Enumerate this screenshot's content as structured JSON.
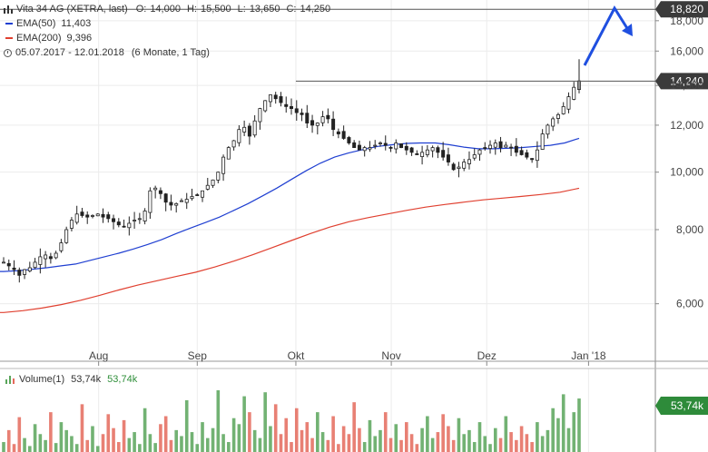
{
  "header": {
    "title": "Vita 34 AG (XETRA, last)",
    "o_label": "O:",
    "o_value": "14,000",
    "h_label": "H:",
    "h_value": "15,500",
    "l_label": "L:",
    "l_value": "13,650",
    "c_label": "C:",
    "c_value": "14,250"
  },
  "ema50": {
    "label": "EMA(50)",
    "value": "11,403",
    "color": "#1f3fd1"
  },
  "ema200": {
    "label": "EMA(200)",
    "value": "9,396",
    "color": "#e04030"
  },
  "period": {
    "text": "05.07.2017 - 12.01.2018",
    "detail": "(6 Monate, 1 Tag)"
  },
  "volume": {
    "label": "Volume(1)",
    "value1": "53,74k",
    "value2": "53,74k",
    "badge": "53,74k"
  },
  "colors": {
    "up": "#3a3a3a",
    "vol_up": "#59a55a",
    "vol_down": "#e46a5c",
    "arrow": "#1f4fe0",
    "badge": "#3b3b3b"
  },
  "chart_data": {
    "type": "candlestick",
    "instrument": "Vita 34 AG (XETRA, last)",
    "x_range": [
      "2017-07-05",
      "2018-01-12"
    ],
    "x_tick_labels": [
      "Aug",
      "Sep",
      "Okt",
      "Nov",
      "Dez",
      "Jan '18"
    ],
    "y_scale": "log",
    "y_ticks": [
      "6,000",
      "8,000",
      "10,000",
      "12,000",
      "14,000",
      "16,000",
      "18,000"
    ],
    "y_tick_values": [
      6000,
      8000,
      10000,
      12000,
      14000,
      16000,
      18000
    ],
    "y_range": [
      4800,
      19100
    ],
    "price_badges": [
      {
        "label": "18,820",
        "value": 18820
      },
      {
        "label": "14,240",
        "value": 14240
      }
    ],
    "close": [
      7.05,
      6.95,
      6.85,
      6.7,
      6.85,
      6.9,
      7.05,
      7.2,
      7.25,
      7.15,
      7.3,
      7.6,
      8.0,
      8.3,
      8.5,
      8.45,
      8.4,
      8.45,
      8.5,
      8.4,
      8.35,
      8.25,
      8.15,
      8.1,
      8.2,
      8.3,
      8.35,
      8.6,
      9.3,
      9.4,
      9.2,
      8.9,
      8.8,
      8.85,
      8.95,
      9.0,
      9.1,
      9.15,
      9.3,
      9.5,
      9.7,
      10.0,
      10.6,
      11.0,
      11.3,
      11.8,
      11.9,
      11.5,
      12.2,
      12.8,
      13.2,
      13.5,
      13.3,
      13.1,
      12.9,
      12.8,
      12.6,
      12.5,
      12.1,
      12.0,
      12.1,
      12.4,
      12.3,
      11.8,
      11.6,
      11.4,
      11.2,
      11.0,
      10.9,
      11.0,
      11.0,
      11.1,
      11.2,
      11.1,
      11.0,
      11.2,
      11.0,
      10.9,
      10.8,
      10.7,
      10.8,
      10.9,
      11.0,
      10.8,
      10.6,
      10.4,
      10.1,
      10.2,
      10.4,
      10.5,
      10.7,
      10.9,
      11.0,
      11.1,
      11.2,
      11.0,
      11.1,
      11.0,
      10.8,
      10.7,
      10.6,
      10.5,
      10.9,
      11.6,
      12.0,
      12.3,
      12.5,
      12.9,
      13.4,
      13.9,
      14.25
    ],
    "ema50": [
      6.8,
      6.82,
      6.86,
      6.9,
      6.95,
      7.0,
      7.1,
      7.2,
      7.3,
      7.42,
      7.55,
      7.7,
      7.88,
      8.05,
      8.22,
      8.4,
      8.62,
      8.85,
      9.12,
      9.4,
      9.72,
      10.05,
      10.35,
      10.6,
      10.78,
      10.92,
      11.05,
      11.12,
      11.18,
      11.2,
      11.2,
      11.12,
      11.02,
      10.95,
      10.95,
      10.97,
      11.0,
      11.05,
      11.1,
      11.2,
      11.403
    ],
    "ema200": [
      5.8,
      5.84,
      5.9,
      5.98,
      6.08,
      6.2,
      6.33,
      6.45,
      6.56,
      6.67,
      6.78,
      6.92,
      7.08,
      7.26,
      7.46,
      7.67,
      7.88,
      8.08,
      8.25,
      8.38,
      8.5,
      8.62,
      8.73,
      8.82,
      8.9,
      8.98,
      9.04,
      9.1,
      9.17,
      9.25,
      9.396
    ],
    "volume_k": [
      10,
      22,
      8,
      35,
      14,
      6,
      28,
      18,
      12,
      40,
      9,
      30,
      22,
      16,
      8,
      48,
      12,
      26,
      6,
      18,
      38,
      24,
      10,
      32,
      14,
      20,
      8,
      44,
      18,
      9,
      28,
      36,
      12,
      22,
      16,
      52,
      20,
      8,
      30,
      14,
      24,
      62,
      18,
      10,
      34,
      28,
      56,
      40,
      22,
      14,
      60,
      26,
      48,
      18,
      34,
      10,
      44,
      22,
      30,
      14,
      40,
      20,
      12,
      36,
      8,
      26,
      18,
      50,
      24,
      10,
      32,
      16,
      22,
      40,
      14,
      28,
      12,
      30,
      18,
      8,
      24,
      36,
      14,
      20,
      38,
      26,
      12,
      34,
      18,
      22,
      10,
      30,
      16,
      8,
      24,
      14,
      36,
      20,
      12,
      26,
      18,
      10,
      30,
      16,
      22,
      44,
      34,
      58,
      24,
      40,
      53.74
    ],
    "volume_colors": "mixed up (green) / down (red) bars"
  }
}
